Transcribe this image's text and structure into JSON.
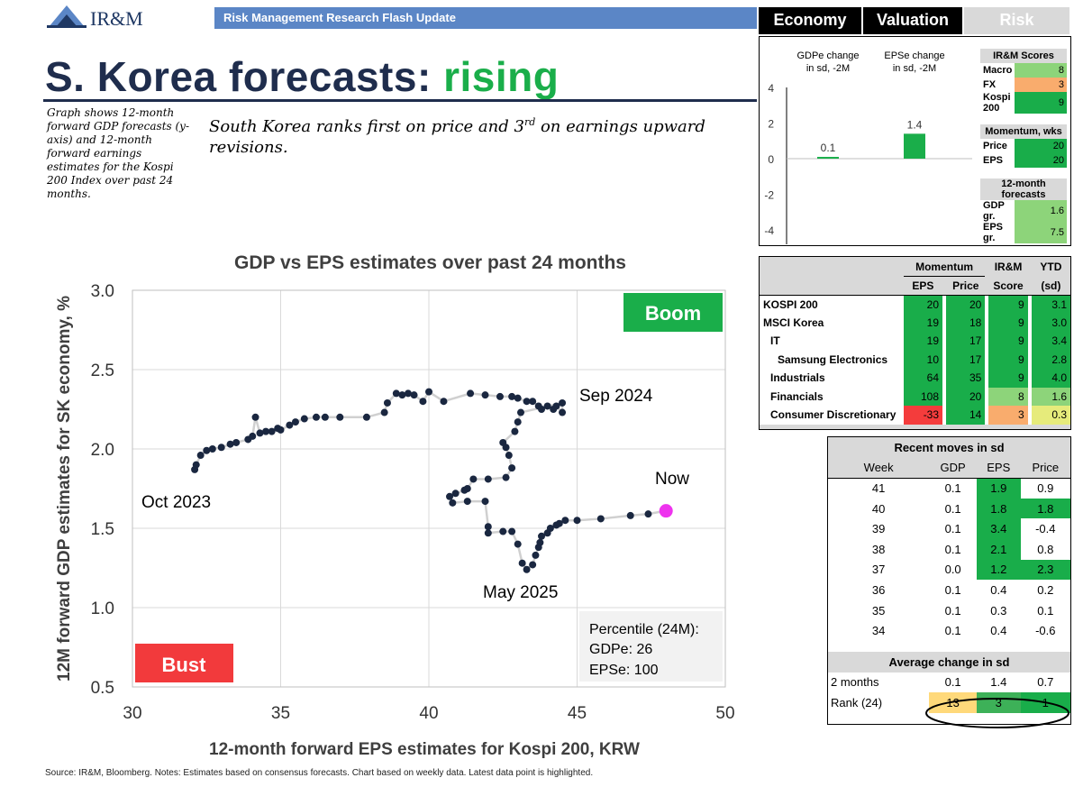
{
  "header": {
    "logo_text": "IR&M",
    "flash_bar": "Risk Management Research Flash Update",
    "title_main": "S. Korea forecasts: ",
    "title_accent": "rising",
    "note": "Graph shows 12-month forward GDP forecasts (y-axis) and 12-month forward earnings estimates for the Kospi 200 Index over past 24 months.",
    "subtitle_a": "South Korea ranks first on price and 3",
    "subtitle_sup": "rd",
    "subtitle_b": " on earnings upward revisions."
  },
  "tabs": [
    "Economy",
    "Valuation",
    "Risk"
  ],
  "colors": {
    "navy": "#1f2d4d",
    "green": "#1aae4a",
    "bust": "#f23a3c",
    "now": "#ee33ee",
    "dot": "#1a2740"
  },
  "chart_data": [
    {
      "type": "scatter",
      "title": "GDP vs EPS  estimates over past 24 months",
      "xlabel": "12-month forward EPS estimates for Kospi 200, KRW",
      "ylabel": "12M forward GDP estimates for SK economy, %",
      "xlim": [
        30,
        50
      ],
      "ylim": [
        0.5,
        3.0
      ],
      "xticks": [
        "30",
        "35",
        "40",
        "45",
        "50"
      ],
      "yticks": [
        "0.5",
        "1.0",
        "1.5",
        "2.0",
        "2.5",
        "3.0"
      ],
      "grid": true,
      "annotations": {
        "boom": "Boom",
        "bust": "Bust",
        "start": "Oct 2023",
        "peak": "Sep 2024",
        "trough": "May 2025",
        "now": "Now",
        "percentile_title": "Percentile (24M):",
        "percentile_gdp": "GDPe: 26",
        "percentile_eps": "EPSe:  100"
      },
      "points": [
        [
          32.1,
          1.87
        ],
        [
          32.15,
          1.9
        ],
        [
          32.3,
          1.96
        ],
        [
          32.5,
          1.99
        ],
        [
          32.7,
          2.0
        ],
        [
          33.0,
          2.01
        ],
        [
          33.3,
          2.03
        ],
        [
          33.5,
          2.04
        ],
        [
          33.9,
          2.06
        ],
        [
          34.05,
          2.08
        ],
        [
          34.15,
          2.2
        ],
        [
          34.3,
          2.1
        ],
        [
          34.5,
          2.11
        ],
        [
          34.7,
          2.11
        ],
        [
          34.9,
          2.13
        ],
        [
          35.0,
          2.12
        ],
        [
          35.3,
          2.15
        ],
        [
          35.5,
          2.17
        ],
        [
          35.8,
          2.19
        ],
        [
          36.2,
          2.2
        ],
        [
          36.5,
          2.2
        ],
        [
          37.0,
          2.2
        ],
        [
          37.9,
          2.2
        ],
        [
          38.5,
          2.23
        ],
        [
          38.6,
          2.29
        ],
        [
          38.9,
          2.35
        ],
        [
          39.1,
          2.34
        ],
        [
          39.3,
          2.35
        ],
        [
          39.5,
          2.34
        ],
        [
          39.8,
          2.3
        ],
        [
          40.0,
          2.36
        ],
        [
          40.5,
          2.3
        ],
        [
          41.4,
          2.35
        ],
        [
          41.9,
          2.34
        ],
        [
          42.4,
          2.33
        ],
        [
          42.8,
          2.33
        ],
        [
          43.0,
          2.32
        ],
        [
          43.3,
          2.3
        ],
        [
          43.5,
          2.3
        ],
        [
          43.7,
          2.27
        ],
        [
          43.8,
          2.25
        ],
        [
          44.0,
          2.27
        ],
        [
          44.2,
          2.25
        ],
        [
          44.3,
          2.27
        ],
        [
          44.5,
          2.23
        ],
        [
          44.5,
          2.29
        ],
        [
          43.1,
          2.23
        ],
        [
          43.0,
          2.17
        ],
        [
          42.9,
          2.11
        ],
        [
          42.5,
          2.04
        ],
        [
          42.6,
          2.01
        ],
        [
          42.7,
          1.96
        ],
        [
          42.8,
          1.88
        ],
        [
          42.6,
          1.82
        ],
        [
          42.0,
          1.81
        ],
        [
          41.5,
          1.81
        ],
        [
          41.3,
          1.75
        ],
        [
          41.2,
          1.74
        ],
        [
          40.9,
          1.72
        ],
        [
          40.7,
          1.7
        ],
        [
          40.8,
          1.66
        ],
        [
          41.3,
          1.67
        ],
        [
          41.9,
          1.67
        ],
        [
          42.0,
          1.51
        ],
        [
          42.0,
          1.47
        ],
        [
          42.5,
          1.48
        ],
        [
          42.8,
          1.48
        ],
        [
          43.0,
          1.4
        ],
        [
          43.15,
          1.28
        ],
        [
          43.3,
          1.24
        ],
        [
          43.5,
          1.27
        ],
        [
          43.6,
          1.33
        ],
        [
          43.7,
          1.38
        ],
        [
          43.75,
          1.41
        ],
        [
          43.8,
          1.45
        ],
        [
          44.0,
          1.47
        ],
        [
          44.1,
          1.5
        ],
        [
          44.3,
          1.52
        ],
        [
          44.4,
          1.53
        ],
        [
          44.6,
          1.55
        ],
        [
          45.0,
          1.55
        ],
        [
          45.8,
          1.56
        ],
        [
          46.8,
          1.58
        ],
        [
          47.4,
          1.59
        ]
      ],
      "now_point": [
        48.0,
        1.61
      ]
    },
    {
      "type": "bar",
      "categories": [
        "GDPe change in sd, -2M",
        "EPSe change in sd, -2M"
      ],
      "category_lines": [
        [
          "GDPe change",
          "in sd, -2M"
        ],
        [
          "EPSe change",
          "in sd, -2M"
        ]
      ],
      "values": [
        0.1,
        1.4
      ],
      "value_labels": [
        "0.1",
        "1.4"
      ],
      "ylim": [
        -4,
        4
      ],
      "yticks": [
        "4",
        "2",
        "0",
        "-2",
        "-4"
      ],
      "grid": false
    }
  ],
  "scores": {
    "ir_header": "IR&M Scores",
    "ir_rows": [
      {
        "label": "Macro",
        "value": "8"
      },
      {
        "label": "FX",
        "value": "3"
      },
      {
        "label": "Kospi 200",
        "value": "9"
      }
    ],
    "mom_header": "Momentum, wks",
    "mom_rows": [
      {
        "label": "Price",
        "value": "20"
      },
      {
        "label": "EPS",
        "value": "20"
      }
    ],
    "fc_header": "12-month forecasts",
    "fc_rows": [
      {
        "label": "GDP gr.",
        "value": "1.6"
      },
      {
        "label": "EPS gr.",
        "value": "7.5"
      }
    ]
  },
  "momentum_table": {
    "h_momentum": "Momentum",
    "h_irm": "IR&M",
    "h_ytd": "YTD",
    "h_eps": "EPS",
    "h_price": "Price",
    "h_score": "Score",
    "h_sd": "(sd)",
    "rows": [
      {
        "label": "KOSPI 200",
        "eps": "20",
        "price": "20",
        "score": "9",
        "ytd": "3.1"
      },
      {
        "label": "MSCI Korea",
        "eps": "19",
        "price": "18",
        "score": "9",
        "ytd": "3.0"
      },
      {
        "label": "IT",
        "eps": "19",
        "price": "17",
        "score": "9",
        "ytd": "3.4"
      },
      {
        "label": "Samsung Electronics",
        "eps": "10",
        "price": "17",
        "score": "9",
        "ytd": "2.8"
      },
      {
        "label": "Industrials",
        "eps": "64",
        "price": "35",
        "score": "9",
        "ytd": "4.0"
      },
      {
        "label": "Financials",
        "eps": "108",
        "price": "20",
        "score": "8",
        "ytd": "1.6"
      },
      {
        "label": "Consumer Discretionary",
        "eps": "-33",
        "price": "14",
        "score": "3",
        "ytd": "0.3"
      }
    ]
  },
  "recent_table": {
    "title": "Recent moves in sd",
    "h_week": "Week",
    "h_gdp": "GDP",
    "h_eps": "EPS",
    "h_price": "Price",
    "rows": [
      {
        "week": "41",
        "gdp": "0.1",
        "eps": "1.9",
        "price": "0.9"
      },
      {
        "week": "40",
        "gdp": "0.1",
        "eps": "1.8",
        "price": "1.8"
      },
      {
        "week": "39",
        "gdp": "0.1",
        "eps": "3.4",
        "price": "-0.4"
      },
      {
        "week": "38",
        "gdp": "0.1",
        "eps": "2.1",
        "price": "0.8"
      },
      {
        "week": "37",
        "gdp": "0.0",
        "eps": "1.2",
        "price": "2.3"
      },
      {
        "week": "36",
        "gdp": "0.1",
        "eps": "0.4",
        "price": "0.2"
      },
      {
        "week": "35",
        "gdp": "0.1",
        "eps": "0.3",
        "price": "0.1"
      },
      {
        "week": "34",
        "gdp": "0.1",
        "eps": "0.4",
        "price": "-0.6"
      }
    ],
    "avg_title": "Average change in sd",
    "avg_row": {
      "label": "2 months",
      "gdp": "0.1",
      "eps": "1.4",
      "price": "0.7"
    },
    "rank_row": {
      "label": "Rank (24)",
      "gdp": "13",
      "eps": "3",
      "price": "1"
    }
  },
  "source": "Source: IR&M, Bloomberg. Notes: Estimates based on consensus forecasts. Chart based on weekly data. Latest data point is highlighted."
}
